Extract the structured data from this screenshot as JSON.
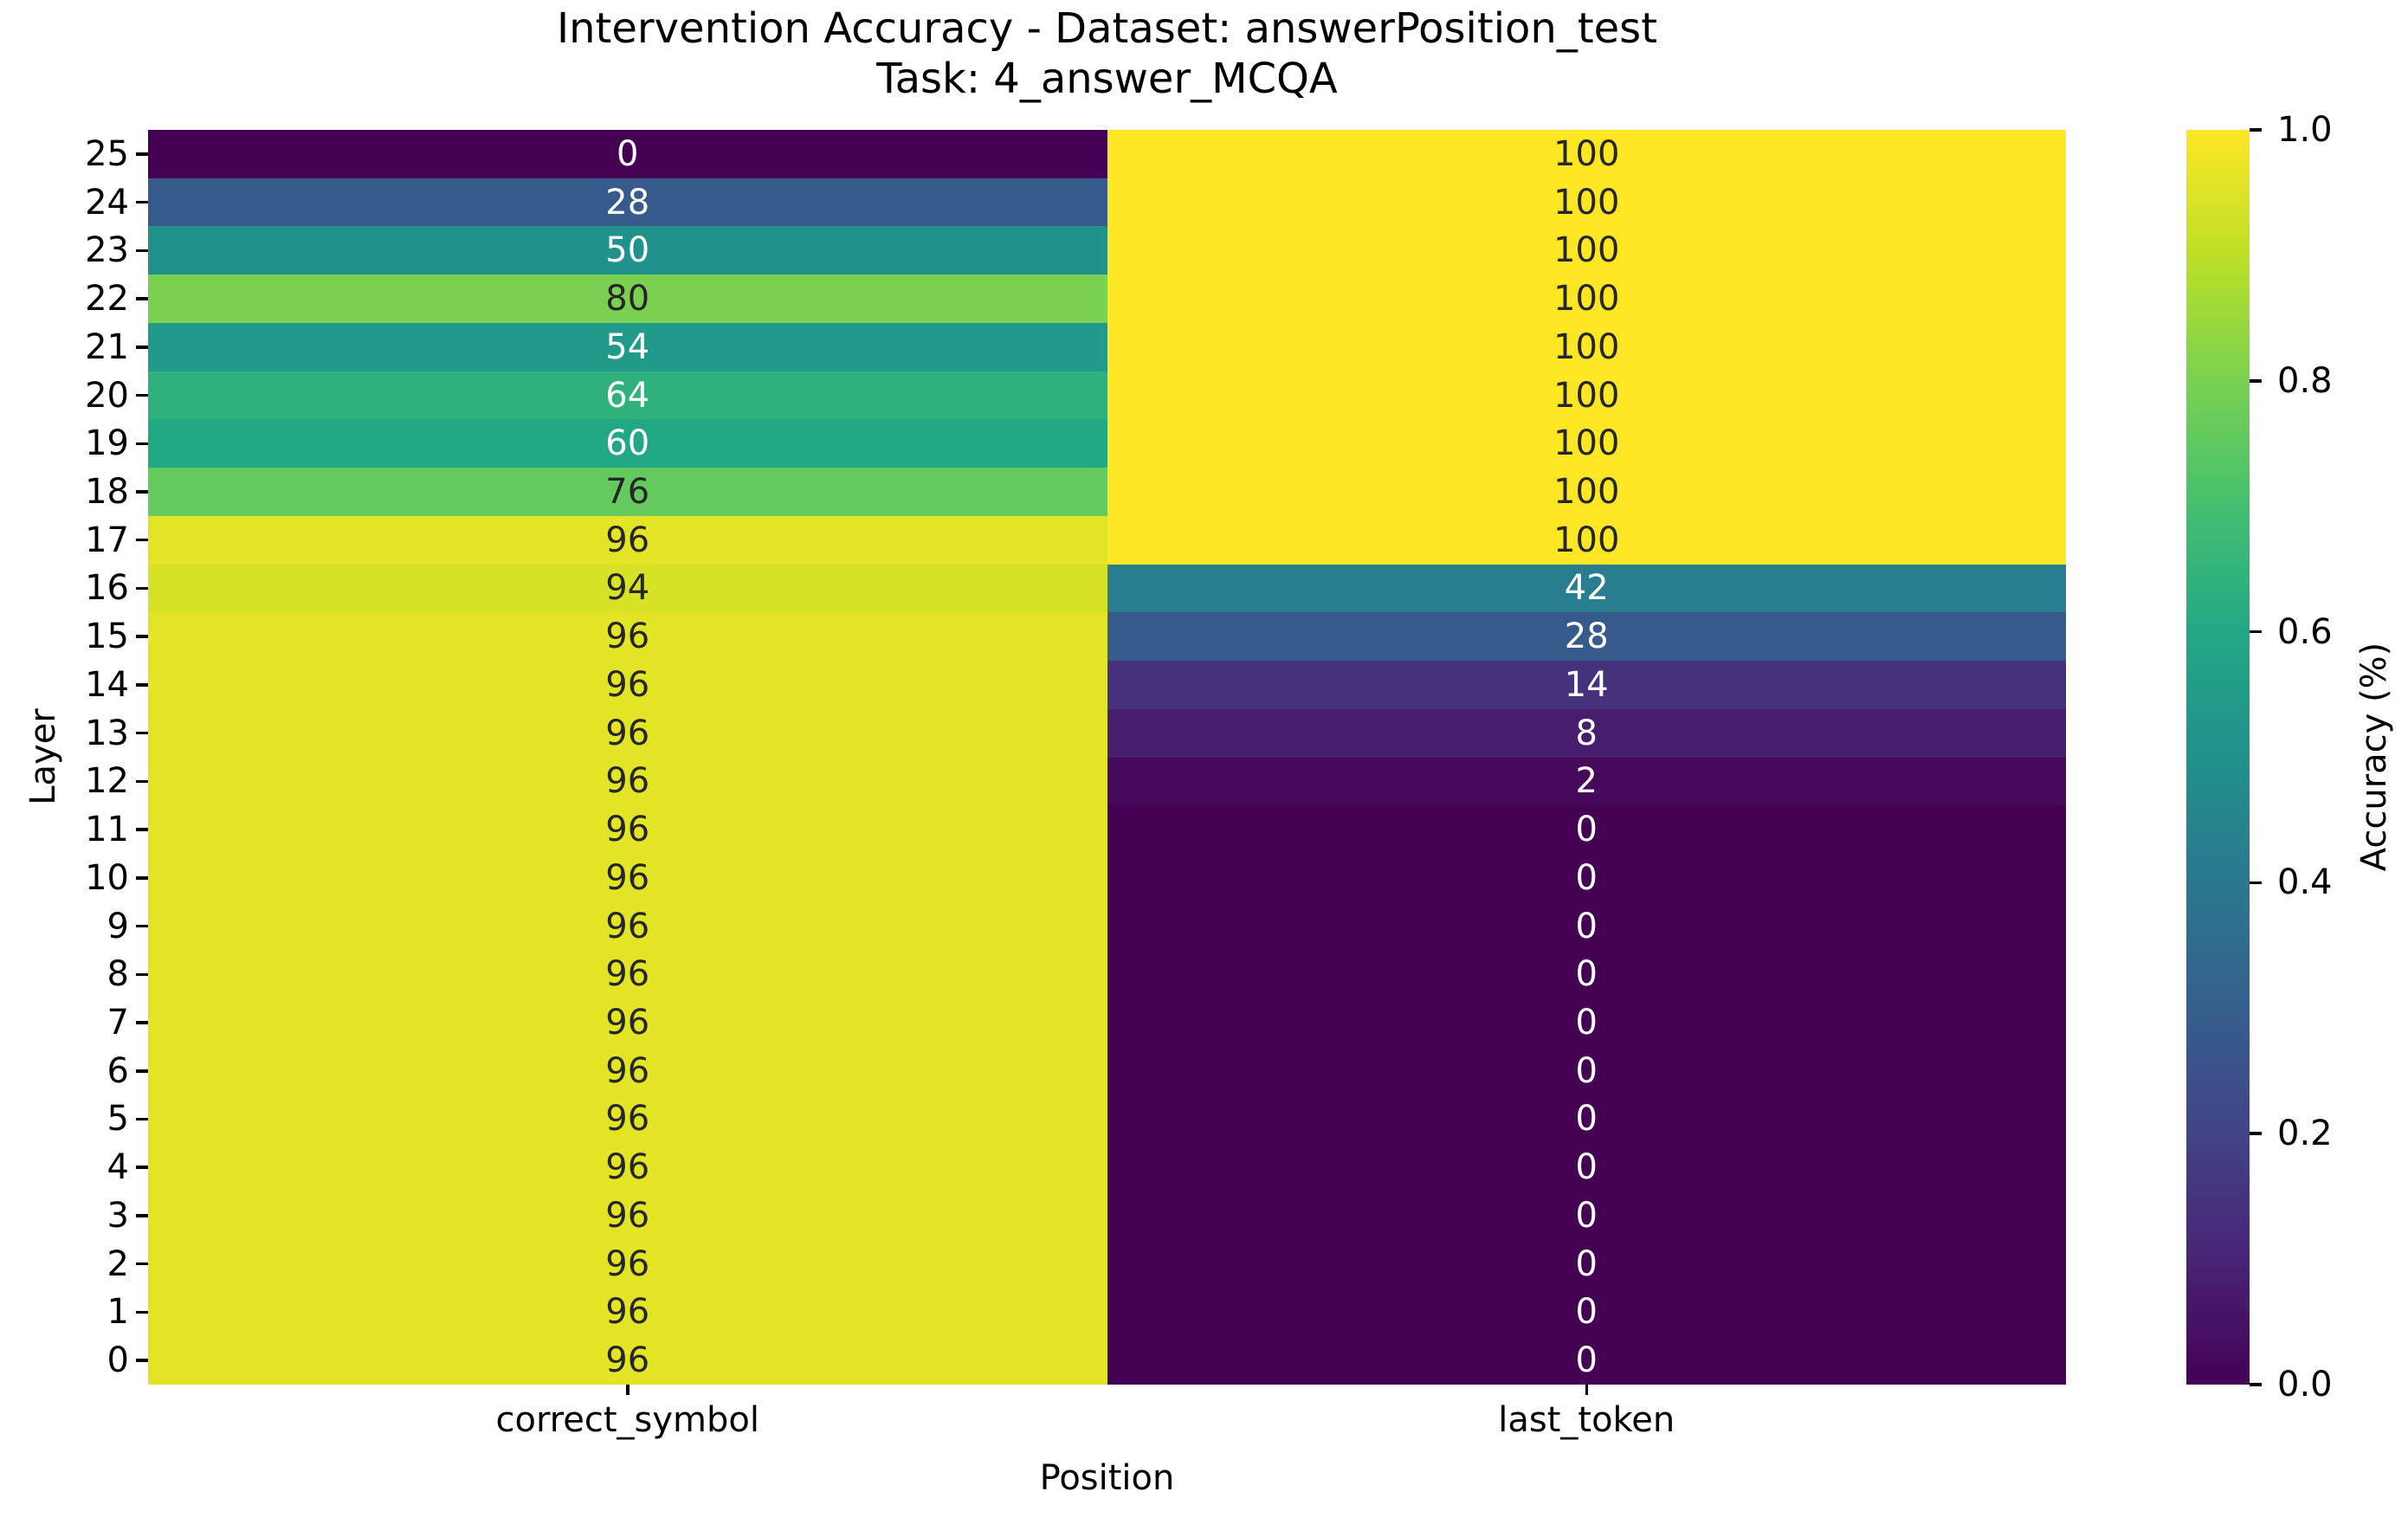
{
  "chart_data": {
    "type": "heatmap",
    "title": "Intervention Accuracy - Dataset: answerPosition_test",
    "subtitle": "Task: 4_answer_MCQA",
    "xlabel": "Position",
    "ylabel": "Layer",
    "columns": [
      "correct_symbol",
      "last_token"
    ],
    "rows": [
      25,
      24,
      23,
      22,
      21,
      20,
      19,
      18,
      17,
      16,
      15,
      14,
      13,
      12,
      11,
      10,
      9,
      8,
      7,
      6,
      5,
      4,
      3,
      2,
      1,
      0
    ],
    "values_percent": [
      [
        0,
        100
      ],
      [
        28,
        100
      ],
      [
        50,
        100
      ],
      [
        80,
        100
      ],
      [
        54,
        100
      ],
      [
        64,
        100
      ],
      [
        60,
        100
      ],
      [
        76,
        100
      ],
      [
        96,
        100
      ],
      [
        94,
        42
      ],
      [
        96,
        28
      ],
      [
        96,
        14
      ],
      [
        96,
        8
      ],
      [
        96,
        2
      ],
      [
        96,
        0
      ],
      [
        96,
        0
      ],
      [
        96,
        0
      ],
      [
        96,
        0
      ],
      [
        96,
        0
      ],
      [
        96,
        0
      ],
      [
        96,
        0
      ],
      [
        96,
        0
      ],
      [
        96,
        0
      ],
      [
        96,
        0
      ],
      [
        96,
        0
      ],
      [
        96,
        0
      ]
    ],
    "annotations_shown": true,
    "grid": "off",
    "legend": "none",
    "colorbar": {
      "label": "Accuracy (%)",
      "tick_labels": [
        "1.0",
        "0.8",
        "0.6",
        "0.4",
        "0.2",
        "0.0"
      ],
      "vmin": 0.0,
      "vmax": 1.0,
      "colormap": "viridis",
      "position": "right",
      "annotation_text_colors": {
        "light_cell": "#262626",
        "dark_cell": "#ffffff"
      }
    }
  }
}
